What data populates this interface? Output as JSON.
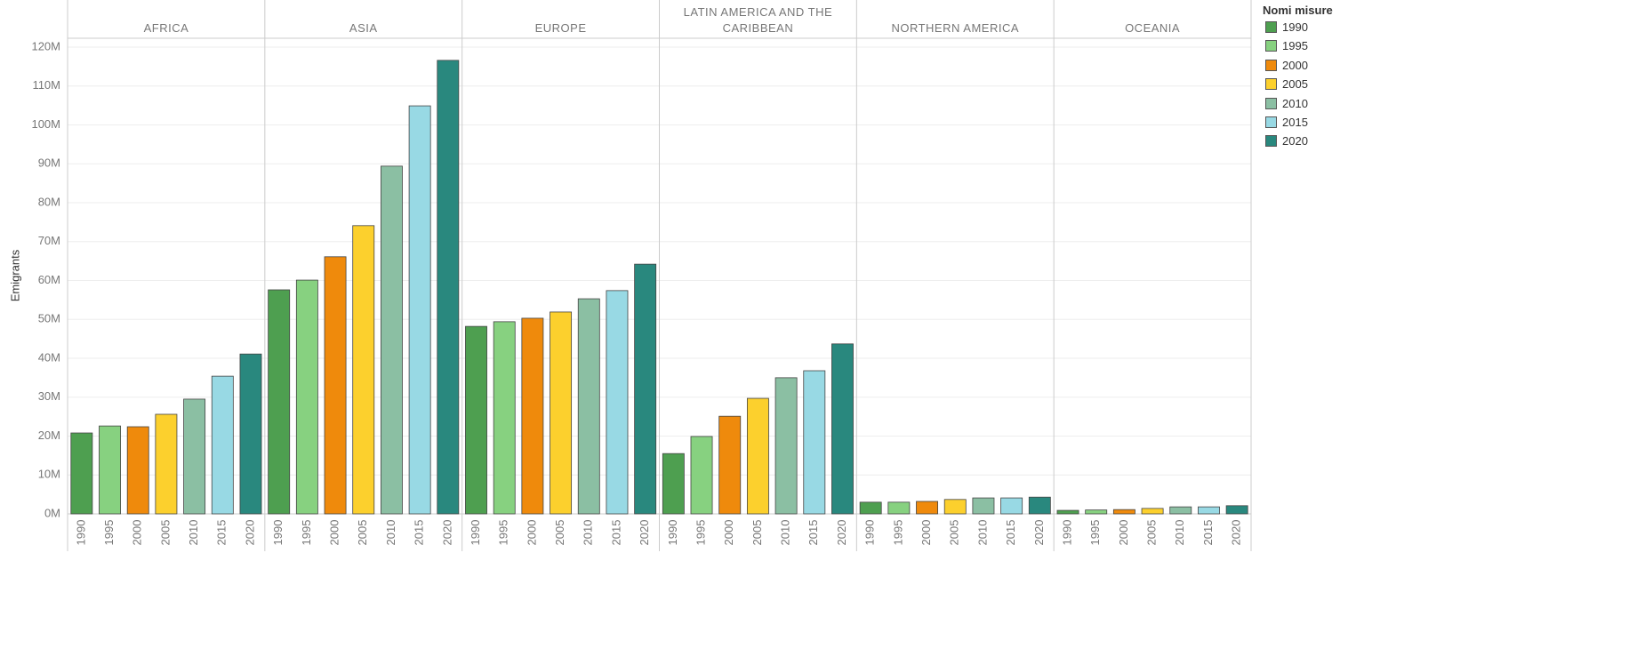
{
  "chart_data": {
    "type": "bar",
    "y_label": "Emigrants",
    "legend_title": "Nomi misure",
    "categories": [
      "AFRICA",
      "ASIA",
      "EUROPE",
      "LATIN AMERICA AND THE CARIBBEAN",
      "NORTHERN AMERICA",
      "OCEANIA"
    ],
    "series": [
      {
        "name": "1990",
        "color": "#4e9f50",
        "values": [
          20800000,
          57600000,
          48200000,
          15500000,
          3000000,
          900000
        ]
      },
      {
        "name": "1995",
        "color": "#87d180",
        "values": [
          22600000,
          60100000,
          49400000,
          19900000,
          3000000,
          1000000
        ]
      },
      {
        "name": "2000",
        "color": "#ef8a0c",
        "values": [
          22400000,
          66100000,
          50300000,
          25100000,
          3200000,
          1100000
        ]
      },
      {
        "name": "2005",
        "color": "#fcd02d",
        "values": [
          25600000,
          74100000,
          51900000,
          29700000,
          3700000,
          1400000
        ]
      },
      {
        "name": "2010",
        "color": "#8bbfa3",
        "values": [
          29500000,
          89400000,
          55300000,
          35000000,
          4100000,
          1800000
        ]
      },
      {
        "name": "2015",
        "color": "#98d9e4",
        "values": [
          35400000,
          104900000,
          57400000,
          36800000,
          4100000,
          1800000
        ]
      },
      {
        "name": "2020",
        "color": "#29887e",
        "values": [
          41100000,
          116600000,
          64200000,
          43700000,
          4300000,
          2100000
        ]
      }
    ],
    "ylim": [
      0,
      120000000
    ],
    "yticks": [
      {
        "value": 0,
        "label": "0M"
      },
      {
        "value": 10000000,
        "label": "10M"
      },
      {
        "value": 20000000,
        "label": "20M"
      },
      {
        "value": 30000000,
        "label": "30M"
      },
      {
        "value": 40000000,
        "label": "40M"
      },
      {
        "value": 50000000,
        "label": "50M"
      },
      {
        "value": 60000000,
        "label": "60M"
      },
      {
        "value": 70000000,
        "label": "70M"
      },
      {
        "value": 80000000,
        "label": "80M"
      },
      {
        "value": 90000000,
        "label": "90M"
      },
      {
        "value": 100000000,
        "label": "100M"
      },
      {
        "value": 110000000,
        "label": "110M"
      },
      {
        "value": 120000000,
        "label": "120M"
      }
    ],
    "grid": true
  }
}
